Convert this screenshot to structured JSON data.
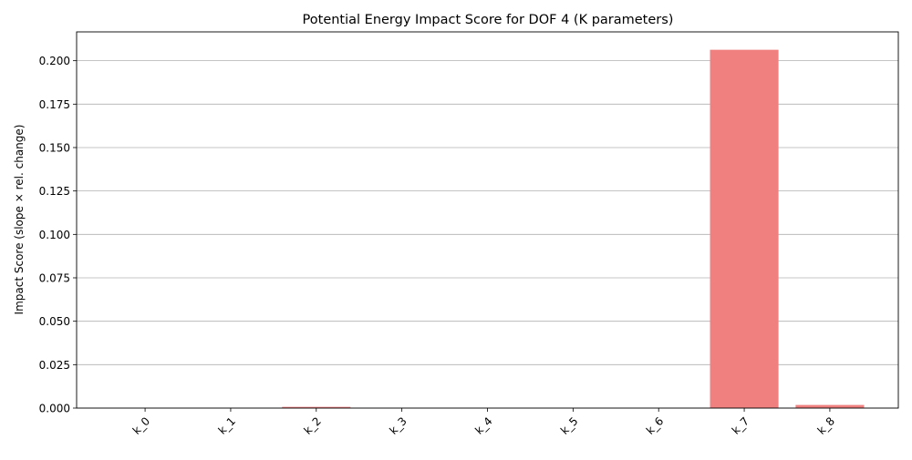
{
  "chart_data": {
    "type": "bar",
    "title": "Potential Energy Impact Score for DOF 4 (K parameters)",
    "xlabel": "",
    "ylabel": "Impact Score (slope × rel. change)",
    "categories": [
      "k_0",
      "k_1",
      "k_2",
      "k_3",
      "k_4",
      "k_5",
      "k_6",
      "k_7",
      "k_8"
    ],
    "values": [
      0.0,
      0.0,
      0.0007,
      0.0,
      0.0,
      0.0,
      0.0,
      0.2063,
      0.0018
    ],
    "ylim": [
      0,
      0.2166
    ],
    "yticks": [
      "0.000",
      "0.025",
      "0.050",
      "0.075",
      "0.100",
      "0.125",
      "0.150",
      "0.175",
      "0.200"
    ],
    "ytick_values": [
      0,
      0.025,
      0.05,
      0.075,
      0.1,
      0.125,
      0.15,
      0.175,
      0.2
    ],
    "grid": "y-axis",
    "bar_color": "#f08080",
    "grid_color": "#b0b0b0",
    "x_tick_rotation_deg": 45
  }
}
